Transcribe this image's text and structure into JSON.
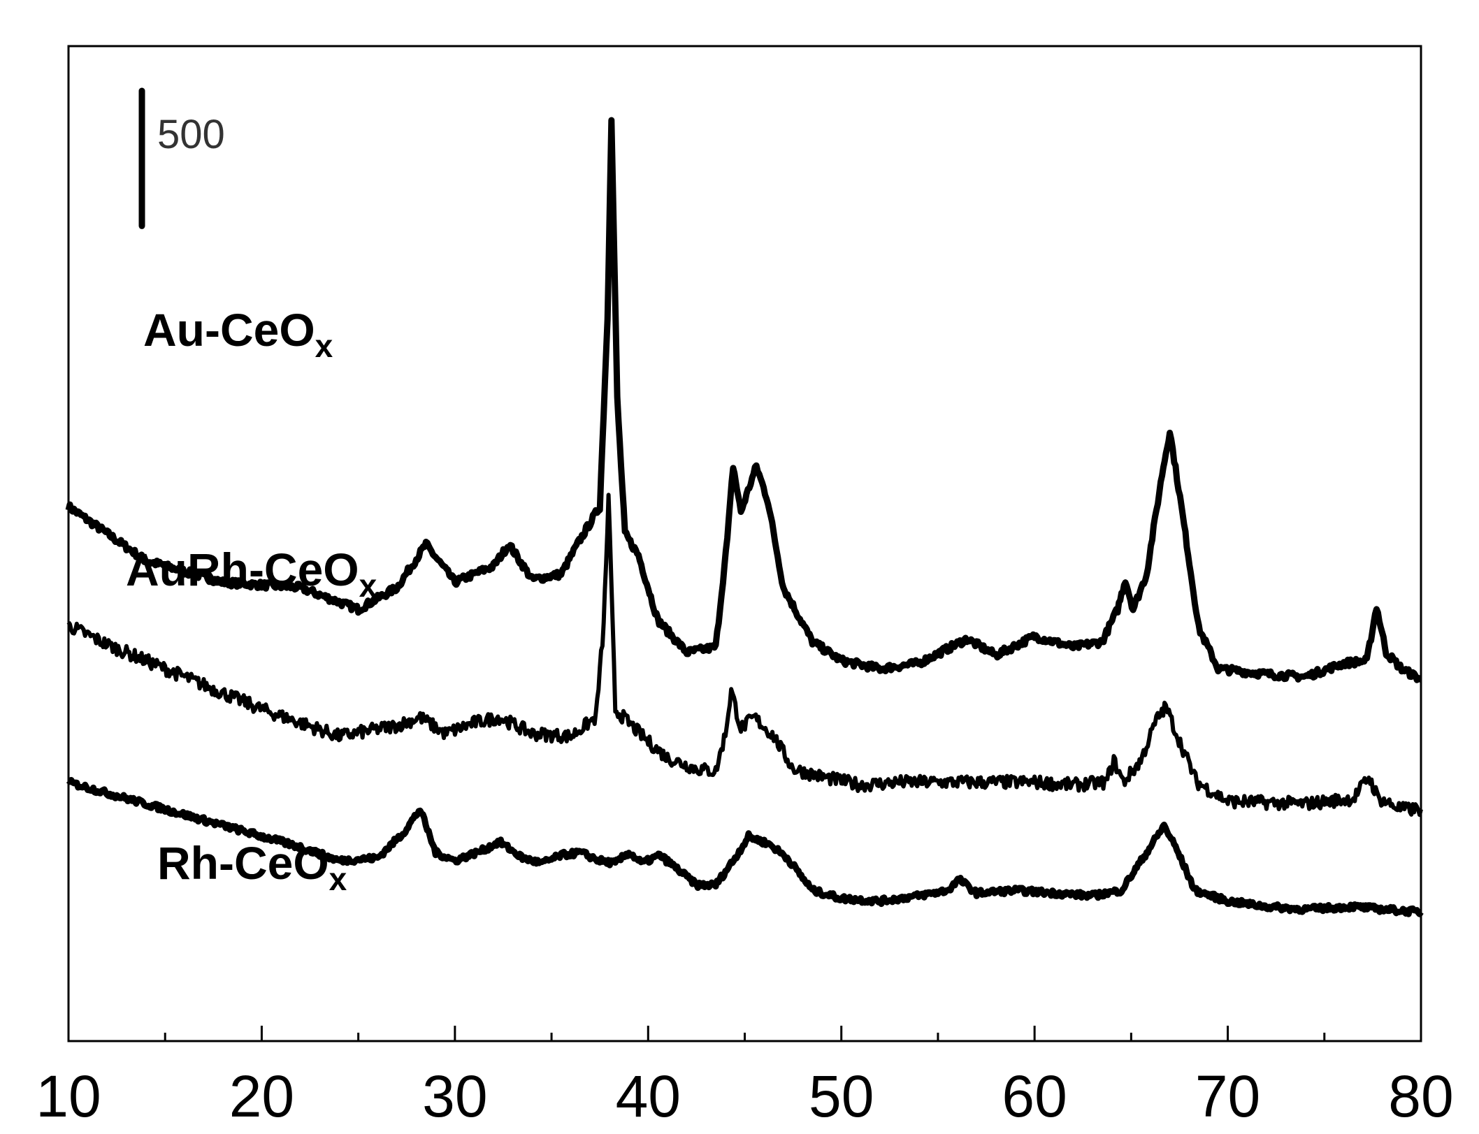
{
  "chart_data": {
    "type": "line",
    "title": "",
    "xlabel": "",
    "ylabel": "",
    "xlim": [
      10,
      80
    ],
    "x_ticks": [
      "10",
      "20",
      "30",
      "40",
      "50",
      "60",
      "70",
      "80"
    ],
    "x_minor_ticks": [
      15,
      25,
      35,
      45,
      55,
      65,
      75
    ],
    "y_ticks_shown": false,
    "grid": false,
    "legend": "none",
    "scale_bar": {
      "label": "500",
      "value": 500
    },
    "line_color": "#000000",
    "series": [
      {
        "name": "Au-CeO",
        "subscript": "x",
        "baseline": 800,
        "noise": 12,
        "x": [
          10,
          14,
          18,
          22,
          25,
          27,
          28.5,
          30,
          32,
          32.8,
          34,
          35.5,
          36.5,
          37.5,
          37.9,
          38.1,
          38.4,
          38.8,
          39.5,
          40.5,
          42,
          43.5,
          44.1,
          44.4,
          44.8,
          45.6,
          46.2,
          47,
          48.5,
          50,
          52,
          54,
          56.5,
          58,
          60,
          62,
          63.5,
          64.3,
          64.7,
          65.1,
          65.8,
          66.6,
          67,
          67.6,
          68.5,
          69.5,
          72,
          74,
          76,
          77.2,
          77.7,
          78.2,
          79,
          80
        ],
        "y": [
          1900,
          1700,
          1620,
          1600,
          1520,
          1600,
          1760,
          1620,
          1680,
          1760,
          1630,
          1650,
          1780,
          1900,
          2600,
          3340,
          2300,
          1800,
          1720,
          1480,
          1360,
          1380,
          1780,
          2050,
          1880,
          2050,
          1920,
          1600,
          1400,
          1330,
          1300,
          1320,
          1410,
          1350,
          1420,
          1380,
          1400,
          1520,
          1630,
          1520,
          1650,
          2020,
          2180,
          1900,
          1450,
          1300,
          1280,
          1270,
          1320,
          1330,
          1530,
          1360,
          1300,
          1260
        ]
      },
      {
        "name": "AuRh-CeO",
        "subscript": "x",
        "baseline": 400,
        "noise": 22,
        "x": [
          10,
          12,
          16,
          20,
          24,
          27,
          28.2,
          29.5,
          31,
          32.3,
          34,
          36,
          37.3,
          37.7,
          37.95,
          38.3,
          39,
          40,
          41,
          42.5,
          43.5,
          44,
          44.3,
          44.8,
          45.5,
          46.5,
          47.5,
          49,
          51,
          53,
          56,
          60,
          62,
          63.7,
          64.1,
          64.6,
          65.5,
          66.3,
          66.8,
          67.4,
          68.4,
          70,
          74,
          76.5,
          77.3,
          77.8,
          79,
          80
        ],
        "y": [
          1460,
          1390,
          1270,
          1150,
          1050,
          1090,
          1120,
          1060,
          1100,
          1120,
          1060,
          1050,
          1120,
          1460,
          1930,
          1150,
          1100,
          1030,
          970,
          930,
          920,
          1060,
          1220,
          1080,
          1120,
          1050,
          930,
          900,
          870,
          880,
          880,
          880,
          870,
          880,
          960,
          880,
          960,
          1110,
          1160,
          1050,
          880,
          810,
          800,
          820,
          900,
          820,
          780,
          780
        ]
      },
      {
        "name": "Rh-CeO",
        "subscript": "x",
        "baseline": 0,
        "noise": 10,
        "x": [
          10,
          14,
          18,
          22,
          24,
          26,
          27.3,
          28.2,
          29,
          30,
          31.5,
          32.3,
          33.5,
          34.5,
          35.5,
          36.5,
          37.5,
          38.3,
          39,
          39.7,
          40.6,
          41.5,
          42.5,
          43.5,
          44.5,
          45.2,
          46.3,
          47.2,
          48.5,
          50,
          52,
          54,
          55.5,
          56.1,
          57,
          59,
          61,
          63,
          64.5,
          65.8,
          66.7,
          67.3,
          68.3,
          70,
          72,
          74,
          76.5,
          78,
          80
        ],
        "y": [
          880,
          800,
          720,
          640,
          590,
          600,
          690,
          780,
          620,
          590,
          630,
          660,
          600,
          580,
          610,
          620,
          590,
          580,
          620,
          580,
          610,
          560,
          500,
          500,
          600,
          680,
          650,
          600,
          480,
          450,
          440,
          460,
          480,
          520,
          470,
          480,
          470,
          460,
          480,
          620,
          720,
          640,
          480,
          440,
          420,
          410,
          420,
          410,
          400
        ]
      }
    ]
  }
}
